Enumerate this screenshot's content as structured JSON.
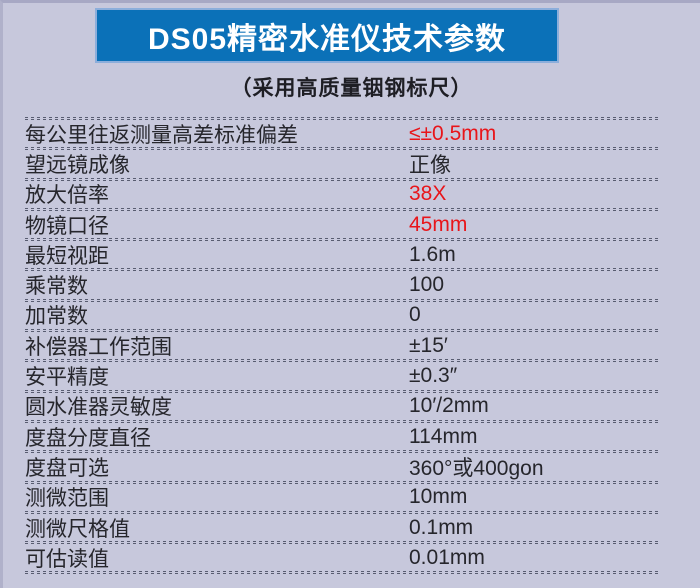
{
  "page": {
    "title": "DS05精密水准仪技术参数",
    "subtitle": "（采用高质量铟钢标尺）"
  },
  "colors": {
    "background": "#c7c8dc",
    "banner_blue": "#0b71b8",
    "banner_border_blue": "#8caedb",
    "title_text": "#ffffff",
    "body_text": "#26262c",
    "highlight_red": "#e8151a",
    "divider_gray": "#585c70"
  },
  "table": {
    "rows": [
      {
        "label": "每公里往返测量高差标准偏差",
        "value": "≤±0.5mm",
        "highlight": "red"
      },
      {
        "label": "望远镜成像",
        "value": "正像",
        "highlight": "none"
      },
      {
        "label": "放大倍率",
        "value": "38X",
        "highlight": "red"
      },
      {
        "label": "物镜口径",
        "value": "45mm",
        "highlight": "red"
      },
      {
        "label": "最短视距",
        "value": "1.6m",
        "highlight": "none"
      },
      {
        "label": "乘常数",
        "value": "100",
        "highlight": "none"
      },
      {
        "label": "加常数",
        "value": "0",
        "highlight": "none"
      },
      {
        "label": "补偿器工作范围",
        "value": "±15′",
        "highlight": "none"
      },
      {
        "label": "安平精度",
        "value": "±0.3″",
        "highlight": "none"
      },
      {
        "label": "圆水准器灵敏度",
        "value": "10′/2mm",
        "highlight": "none"
      },
      {
        "label": "度盘分度直径",
        "value": "114mm",
        "highlight": "none"
      },
      {
        "label": "度盘可选",
        "value": "360°或400gon",
        "highlight": "none"
      },
      {
        "label": "测微范围",
        "value": "10mm",
        "highlight": "none"
      },
      {
        "label": "测微尺格值",
        "value": "0.1mm",
        "highlight": "none"
      },
      {
        "label": "可估读值",
        "value": "0.01mm",
        "highlight": "none"
      }
    ]
  }
}
